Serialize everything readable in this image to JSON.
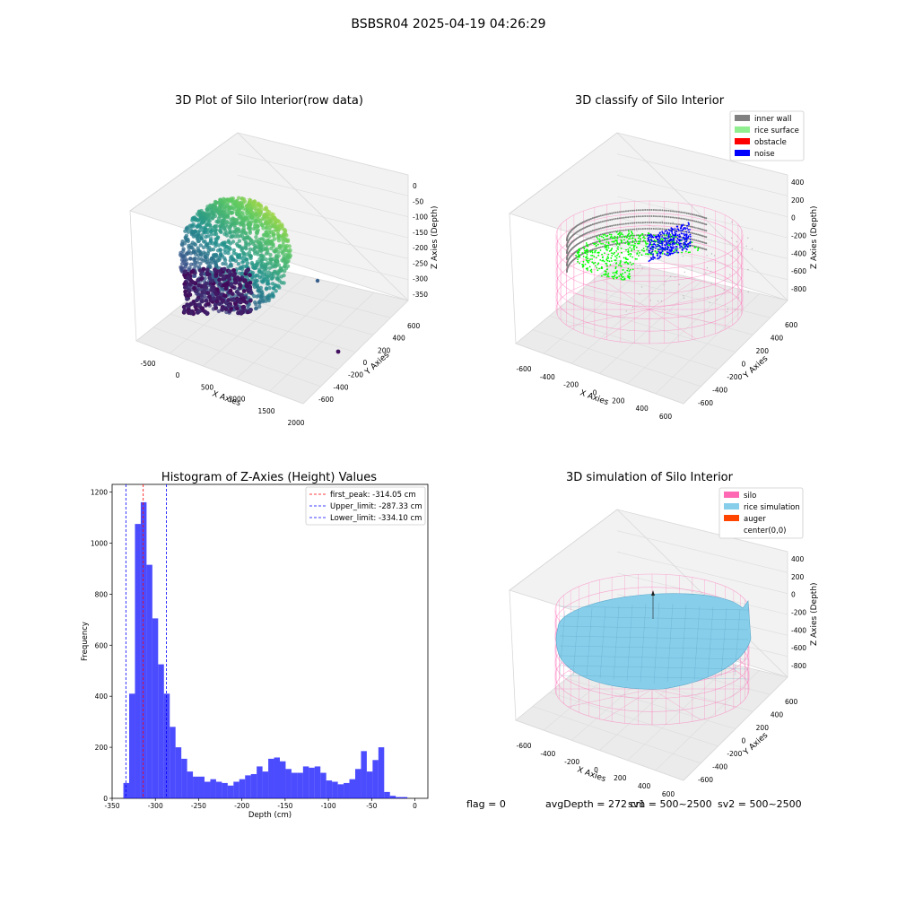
{
  "figure_title": "BSBSR04 2025-04-19 04:26:29",
  "footer": {
    "flag": "flag = 0",
    "avg_depth": "avgDepth = 272 cm",
    "sv1": "sv1 = 500~2500",
    "sv2": "sv2 = 500~2500"
  },
  "colors": {
    "inner_wall": "#808080",
    "rice_surface": "#90ee90",
    "obstacle": "#ff0000",
    "noise": "#0000ff",
    "silo": "#ff69b4",
    "rice_simulation": "#87ceeb",
    "auger": "#ff4500",
    "histogram_bars": "#0000ff",
    "first_peak_line": "#ff0000",
    "limit_lines": "#0000ff"
  },
  "chart_data": [
    {
      "type": "scatter3d",
      "title": "3D Plot of Silo Interior(row data)",
      "xlabel": "X Axies",
      "ylabel": "Y Axies",
      "zlabel": "Z Axies (Depth)",
      "xticks": [
        -500,
        0,
        500,
        1000,
        1500,
        2000
      ],
      "yticks": [
        -600,
        -400,
        -200,
        0,
        200,
        400,
        600
      ],
      "zticks": [
        0,
        -50,
        -100,
        -150,
        -200,
        -250,
        -300,
        -350
      ],
      "colormap": "viridis"
    },
    {
      "type": "scatter3d",
      "title": "3D classify of Silo Interior",
      "xlabel": "X Axies",
      "ylabel": "Y Axies",
      "zlabel": "Z Axies (Depth)",
      "xticks": [
        -600,
        -400,
        -200,
        0,
        200,
        400,
        600
      ],
      "yticks": [
        -600,
        -400,
        -200,
        0,
        200,
        400,
        600
      ],
      "zticks": [
        400,
        200,
        0,
        -200,
        -400,
        -600,
        -800
      ],
      "legend_position": "top-right",
      "legend": [
        "inner wall",
        "rice surface",
        "obstacle",
        "noise"
      ]
    },
    {
      "type": "bar",
      "title": "Histogram of Z-Axies (Height) Values",
      "xlabel": "Depth (cm)",
      "ylabel": "Frequency",
      "xlim": [
        -350,
        15
      ],
      "ylim": [
        0,
        1230
      ],
      "xticks": [
        -350,
        -300,
        -250,
        -200,
        -150,
        -100,
        -50,
        0
      ],
      "yticks": [
        0,
        200,
        400,
        600,
        800,
        1000,
        1200
      ],
      "bin_start": -337,
      "bin_width": 6.7,
      "values": [
        60,
        410,
        1075,
        1160,
        915,
        705,
        525,
        410,
        280,
        200,
        155,
        105,
        85,
        85,
        65,
        75,
        65,
        60,
        50,
        65,
        75,
        90,
        95,
        125,
        105,
        155,
        160,
        145,
        115,
        100,
        100,
        125,
        120,
        125,
        100,
        70,
        65,
        55,
        60,
        75,
        115,
        185,
        105,
        150,
        200,
        25,
        10,
        5,
        5
      ],
      "vlines": [
        {
          "name": "first_peak: -314.05 cm",
          "x": -314.05,
          "color": "#ff0000"
        },
        {
          "name": "Upper_limit: -287.33 cm",
          "x": -287.33,
          "color": "#0000ff"
        },
        {
          "name": "Lower_limit: -334.10 cm",
          "x": -334.1,
          "color": "#0000ff"
        }
      ],
      "legend_position": "top-right"
    },
    {
      "type": "surface3d",
      "title": "3D simulation of Silo Interior",
      "xlabel": "X Axies",
      "ylabel": "Y Axies",
      "zlabel": "Z Axies (Depth)",
      "xticks": [
        -600,
        -400,
        -200,
        0,
        200,
        400,
        600
      ],
      "yticks": [
        -600,
        -400,
        -200,
        0,
        200,
        400,
        600
      ],
      "zticks": [
        400,
        200,
        0,
        -200,
        -400,
        -600,
        -800
      ],
      "legend_position": "top-right",
      "legend": [
        "silo",
        "rice simulation",
        "auger",
        "center(0,0)"
      ]
    }
  ]
}
